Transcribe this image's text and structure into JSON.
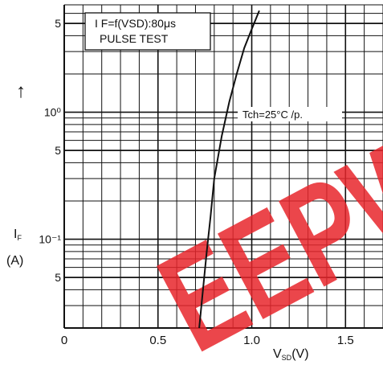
{
  "chart_data": {
    "type": "line",
    "x_scale": "linear",
    "y_scale": "log",
    "xlim": [
      0,
      1.7
    ],
    "ylim": [
      0.02,
      7
    ],
    "x_ticks": [
      {
        "value": 0,
        "label": "0"
      },
      {
        "value": 0.5,
        "label": "0.5"
      },
      {
        "value": 1.0,
        "label": "1.0"
      },
      {
        "value": 1.5,
        "label": "1.5"
      }
    ],
    "y_ticks": [
      {
        "value": 5,
        "label": "5"
      },
      {
        "value": 1,
        "label": "10⁰"
      },
      {
        "value": 0.5,
        "label": "5"
      },
      {
        "value": 0.1,
        "label": "10⁻¹"
      },
      {
        "value": 0.05,
        "label": "5"
      }
    ],
    "grid": true,
    "xlabel": {
      "main": "V",
      "sub": "SD",
      "unit": "(V)"
    },
    "ylabel": {
      "main": "I",
      "sub": "F",
      "unit": "(A)",
      "arrow": "↑"
    },
    "annotations": [
      {
        "text": "I F=f(VSD):80μs"
      },
      {
        "text": "PULSE TEST"
      },
      {
        "text": "Tch=25°C /p."
      }
    ],
    "series": [
      {
        "x": [
          0.72,
          0.74,
          0.76,
          0.78,
          0.8,
          0.84,
          0.88,
          0.92,
          0.96,
          1.0,
          1.04
        ],
        "y": [
          0.02,
          0.04,
          0.08,
          0.15,
          0.3,
          0.65,
          1.2,
          2.0,
          3.2,
          4.5,
          6.3
        ]
      }
    ]
  },
  "watermark": {
    "text": "EEPW",
    "color": "#e8262b"
  }
}
